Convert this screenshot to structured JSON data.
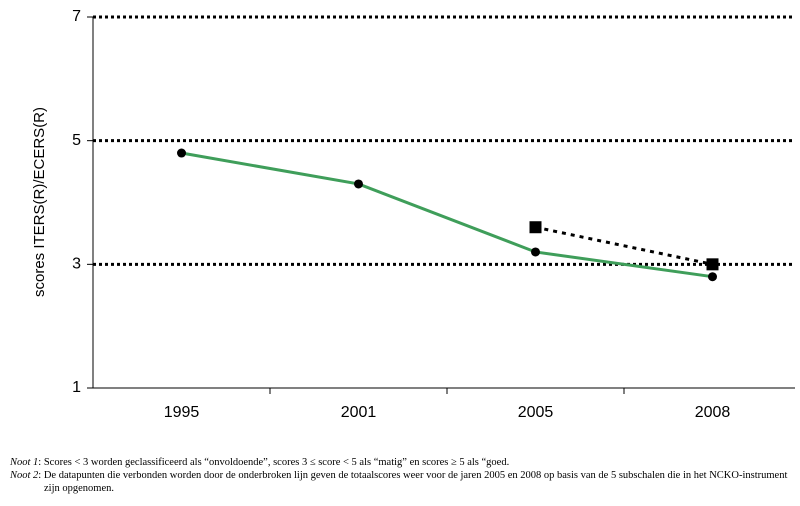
{
  "chart_data": {
    "type": "line",
    "y_label": "scores ITERS(R)/ECERS(R)",
    "categories": [
      "1995",
      "2001",
      "2005",
      "2008"
    ],
    "series": [
      {
        "color": "#3f9e5a",
        "marker": "circle",
        "dash": "solid",
        "values": [
          4.8,
          4.3,
          3.2,
          2.8
        ]
      },
      {
        "color": "#000000",
        "marker": "square",
        "dash": "dotted",
        "values": [
          null,
          null,
          3.6,
          3.0
        ]
      }
    ],
    "ylim": [
      1,
      7
    ],
    "yticks": [
      1,
      3,
      5,
      7
    ],
    "grid": true
  },
  "notes": [
    {
      "label": "Noot 1",
      "text": ": Scores < 3 worden geclassificeerd als “onvoldoende”, scores 3 ≤ score < 5 als “matig” en scores ≥ 5 als “goed."
    },
    {
      "label": "Noot 2",
      "text": ": De datapunten die verbonden worden door de onderbroken lijn geven de totaalscores weer voor de jaren 2005 en 2008 op basis van de 5 subschalen die in het NCKO-instrument zijn opgenomen."
    }
  ]
}
